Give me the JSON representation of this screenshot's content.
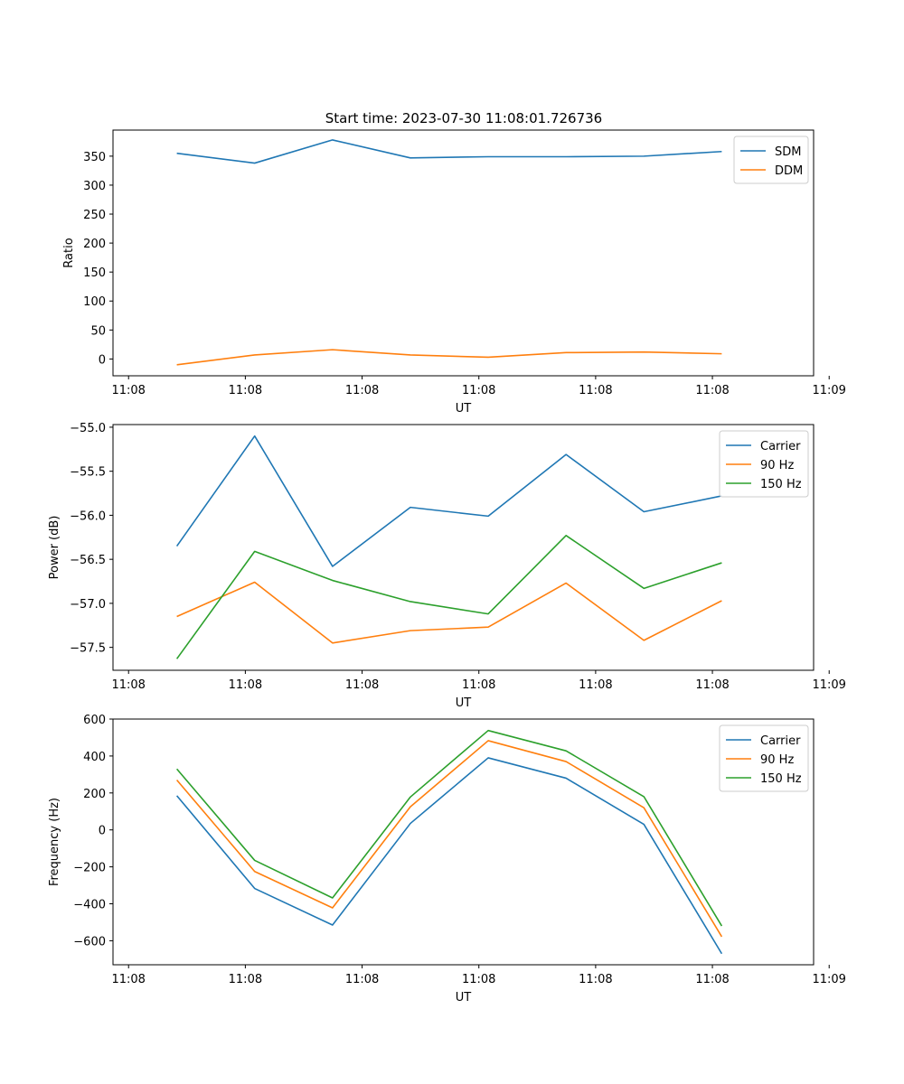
{
  "figure_title": "Start time: 2023-07-30 11:08:01.726736",
  "colors": {
    "blue": "#1f77b4",
    "orange": "#ff7f0e",
    "green": "#2ca02c"
  },
  "chart_data": [
    {
      "type": "line",
      "title": "Start time: 2023-07-30 11:08:01.726736",
      "xlabel": "UT",
      "ylabel": "Ratio",
      "legend_position": "top-right",
      "grid": false,
      "x": [
        1,
        2,
        3,
        4,
        5,
        6,
        7,
        8
      ],
      "xlim": [
        0.18,
        9.18
      ],
      "x_ticks": [
        0.38,
        1.88,
        3.38,
        4.88,
        6.38,
        7.88,
        9.38
      ],
      "x_tick_labels": [
        "11:08",
        "11:08",
        "11:08",
        "11:08",
        "11:08",
        "11:08",
        "11:09"
      ],
      "ylim": [
        -29,
        395
      ],
      "y_ticks": [
        0,
        50,
        100,
        150,
        200,
        250,
        300,
        350
      ],
      "y_tick_labels": [
        "0",
        "50",
        "100",
        "150",
        "200",
        "250",
        "300",
        "350"
      ],
      "series": [
        {
          "name": "SDM",
          "color": "#1f77b4",
          "values": [
            355,
            338,
            378,
            347,
            349,
            349,
            350,
            358
          ]
        },
        {
          "name": "DDM",
          "color": "#ff7f0e",
          "values": [
            -10,
            7,
            16,
            7,
            3,
            11,
            12,
            9
          ]
        }
      ]
    },
    {
      "type": "line",
      "title": "",
      "xlabel": "UT",
      "ylabel": "Power (dB)",
      "legend_position": "top-right",
      "grid": false,
      "x": [
        1,
        2,
        3,
        4,
        5,
        6,
        7,
        8
      ],
      "xlim": [
        0.18,
        9.18
      ],
      "x_ticks": [
        0.38,
        1.88,
        3.38,
        4.88,
        6.38,
        7.88,
        9.38
      ],
      "x_tick_labels": [
        "11:08",
        "11:08",
        "11:08",
        "11:08",
        "11:08",
        "11:08",
        "11:09"
      ],
      "ylim": [
        -57.76,
        -54.97
      ],
      "y_ticks": [
        -57.5,
        -57.0,
        -56.5,
        -56.0,
        -55.5,
        -55.0
      ],
      "y_tick_labels": [
        "−57.5",
        "−57.0",
        "−56.5",
        "−56.0",
        "−55.5",
        "−55.0"
      ],
      "series": [
        {
          "name": "Carrier",
          "color": "#1f77b4",
          "values": [
            -56.35,
            -55.1,
            -56.58,
            -55.91,
            -56.01,
            -55.31,
            -55.96,
            -55.78
          ]
        },
        {
          "name": "90 Hz",
          "color": "#ff7f0e",
          "values": [
            -57.15,
            -56.76,
            -57.45,
            -57.31,
            -57.27,
            -56.77,
            -57.42,
            -56.97
          ]
        },
        {
          "name": "150 Hz",
          "color": "#2ca02c",
          "values": [
            -57.63,
            -56.41,
            -56.74,
            -56.98,
            -57.12,
            -56.23,
            -56.83,
            -56.54
          ]
        }
      ]
    },
    {
      "type": "line",
      "title": "",
      "xlabel": "UT",
      "ylabel": "Frequency (Hz)",
      "legend_position": "top-right",
      "grid": false,
      "x": [
        1,
        2,
        3,
        4,
        5,
        6,
        7,
        8
      ],
      "xlim": [
        0.18,
        9.18
      ],
      "x_ticks": [
        0.38,
        1.88,
        3.38,
        4.88,
        6.38,
        7.88,
        9.38
      ],
      "x_tick_labels": [
        "11:08",
        "11:08",
        "11:08",
        "11:08",
        "11:08",
        "11:08",
        "11:09"
      ],
      "ylim": [
        -730,
        600
      ],
      "y_ticks": [
        -600,
        -400,
        -200,
        0,
        200,
        400,
        600
      ],
      "y_tick_labels": [
        "−600",
        "−400",
        "−200",
        "0",
        "200",
        "400",
        "600"
      ],
      "series": [
        {
          "name": "Carrier",
          "color": "#1f77b4",
          "values": [
            185,
            -317,
            -515,
            35,
            390,
            280,
            30,
            -670
          ]
        },
        {
          "name": "90 Hz",
          "color": "#ff7f0e",
          "values": [
            270,
            -225,
            -422,
            125,
            483,
            370,
            120,
            -578
          ]
        },
        {
          "name": "150 Hz",
          "color": "#2ca02c",
          "values": [
            330,
            -165,
            -368,
            178,
            538,
            428,
            180,
            -520
          ]
        }
      ]
    }
  ]
}
